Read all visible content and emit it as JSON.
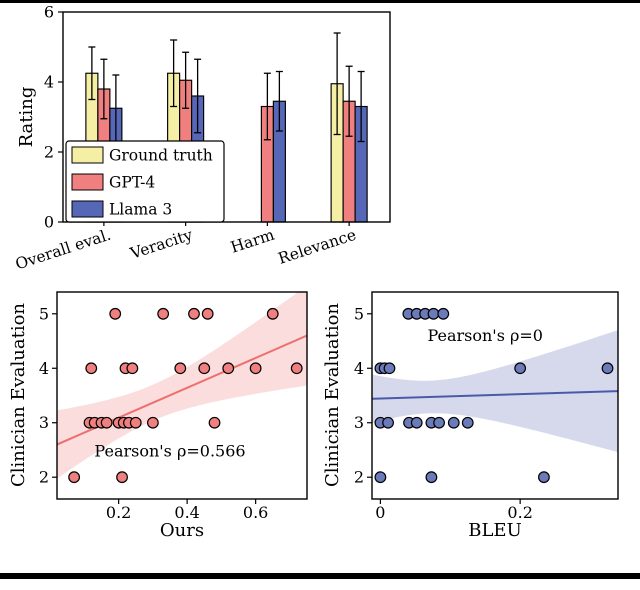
{
  "chart_data": [
    {
      "id": "clinician-ratings-bar",
      "type": "bar",
      "title": "",
      "xlabel": "",
      "ylabel": "Rating",
      "ylim": [
        0,
        6
      ],
      "yticks": [
        "0",
        "2",
        "4",
        "6"
      ],
      "ytick_values": [
        0,
        2,
        4,
        6
      ],
      "categories": [
        "Overall eval.",
        "Veracity",
        "Harm",
        "Relevance"
      ],
      "series": [
        {
          "name": "Ground truth",
          "color": "#f4efa5",
          "values": [
            4.25,
            4.25,
            null,
            3.95
          ],
          "errors": [
            0.75,
            0.95,
            null,
            1.45
          ]
        },
        {
          "name": "GPT-4",
          "color": "#f08080",
          "values": [
            3.8,
            4.05,
            3.3,
            3.45
          ],
          "errors": [
            0.85,
            0.8,
            0.95,
            1.0
          ]
        },
        {
          "name": "Llama 3",
          "color": "#5767b8",
          "values": [
            3.25,
            3.6,
            3.45,
            3.3
          ],
          "errors": [
            0.95,
            1.05,
            0.85,
            1.0
          ]
        }
      ],
      "legend": {
        "position": "lower-left"
      },
      "grid": false
    },
    {
      "id": "ours-vs-clinician-scatter",
      "type": "scatter",
      "xlabel": "Ours",
      "ylabel": "Clinician Evaluation",
      "xlim": [
        0.02,
        0.75
      ],
      "ylim": [
        1.6,
        5.4
      ],
      "xticks": [
        "0.2",
        "0.4",
        "0.6"
      ],
      "xtick_values": [
        0.2,
        0.4,
        0.6
      ],
      "yticks": [
        "2",
        "3",
        "4",
        "5"
      ],
      "ytick_values": [
        2,
        3,
        4,
        5
      ],
      "point_color": "#f08080",
      "line_color": "#ed7070",
      "band_color": "rgba(240,128,128,0.27)",
      "annotation": {
        "text": "Pearson's ρ=0.566",
        "x": 0.35,
        "y": 2.38
      },
      "trend": {
        "x": [
          0.02,
          0.75
        ],
        "y": [
          2.6,
          4.6
        ]
      },
      "band": {
        "center_x": 0.3,
        "half_min": 0.33,
        "spread": 1.9
      },
      "points": [
        [
          0.07,
          2
        ],
        [
          0.21,
          2
        ],
        [
          0.115,
          3
        ],
        [
          0.13,
          3
        ],
        [
          0.15,
          3
        ],
        [
          0.165,
          3
        ],
        [
          0.2,
          3
        ],
        [
          0.215,
          3
        ],
        [
          0.23,
          3
        ],
        [
          0.25,
          3
        ],
        [
          0.3,
          3
        ],
        [
          0.48,
          3
        ],
        [
          0.12,
          4
        ],
        [
          0.22,
          4
        ],
        [
          0.24,
          4
        ],
        [
          0.38,
          4
        ],
        [
          0.45,
          4
        ],
        [
          0.52,
          4
        ],
        [
          0.6,
          4
        ],
        [
          0.72,
          4
        ],
        [
          0.19,
          5
        ],
        [
          0.33,
          5
        ],
        [
          0.42,
          5
        ],
        [
          0.46,
          5
        ],
        [
          0.65,
          5
        ]
      ],
      "grid": false
    },
    {
      "id": "bleu-vs-clinician-scatter",
      "type": "scatter",
      "xlabel": "BLEU",
      "ylabel": "Clinician Evaluation",
      "xlim": [
        -0.012,
        0.34
      ],
      "ylim": [
        1.6,
        5.4
      ],
      "xticks": [
        "0",
        "0.2"
      ],
      "xtick_values": [
        0,
        0.2
      ],
      "yticks": [
        "2",
        "3",
        "4",
        "5"
      ],
      "ytick_values": [
        2,
        3,
        4,
        5
      ],
      "point_color": "#6b7ab8",
      "line_color": "#4a5aa8",
      "band_color": "rgba(90,104,181,0.25)",
      "annotation": {
        "text": "Pearson's ρ=0",
        "x": 0.15,
        "y": 4.5
      },
      "trend": {
        "x": [
          -0.012,
          0.34
        ],
        "y": [
          3.44,
          3.58
        ]
      },
      "band": {
        "center_x": 0.07,
        "half_min": 0.3,
        "spread": 4.0
      },
      "points": [
        [
          0,
          2
        ],
        [
          0.073,
          2
        ],
        [
          0.234,
          2
        ],
        [
          0,
          3
        ],
        [
          0.011,
          3
        ],
        [
          0.041,
          3
        ],
        [
          0.052,
          3
        ],
        [
          0.073,
          3
        ],
        [
          0.084,
          3
        ],
        [
          0.105,
          3
        ],
        [
          0.125,
          3
        ],
        [
          0,
          4
        ],
        [
          0.006,
          4
        ],
        [
          0.013,
          4
        ],
        [
          0.2,
          4
        ],
        [
          0.325,
          4
        ],
        [
          0.04,
          5
        ],
        [
          0.052,
          5
        ],
        [
          0.064,
          5
        ],
        [
          0.076,
          5
        ],
        [
          0.09,
          5
        ]
      ],
      "grid": false
    }
  ]
}
